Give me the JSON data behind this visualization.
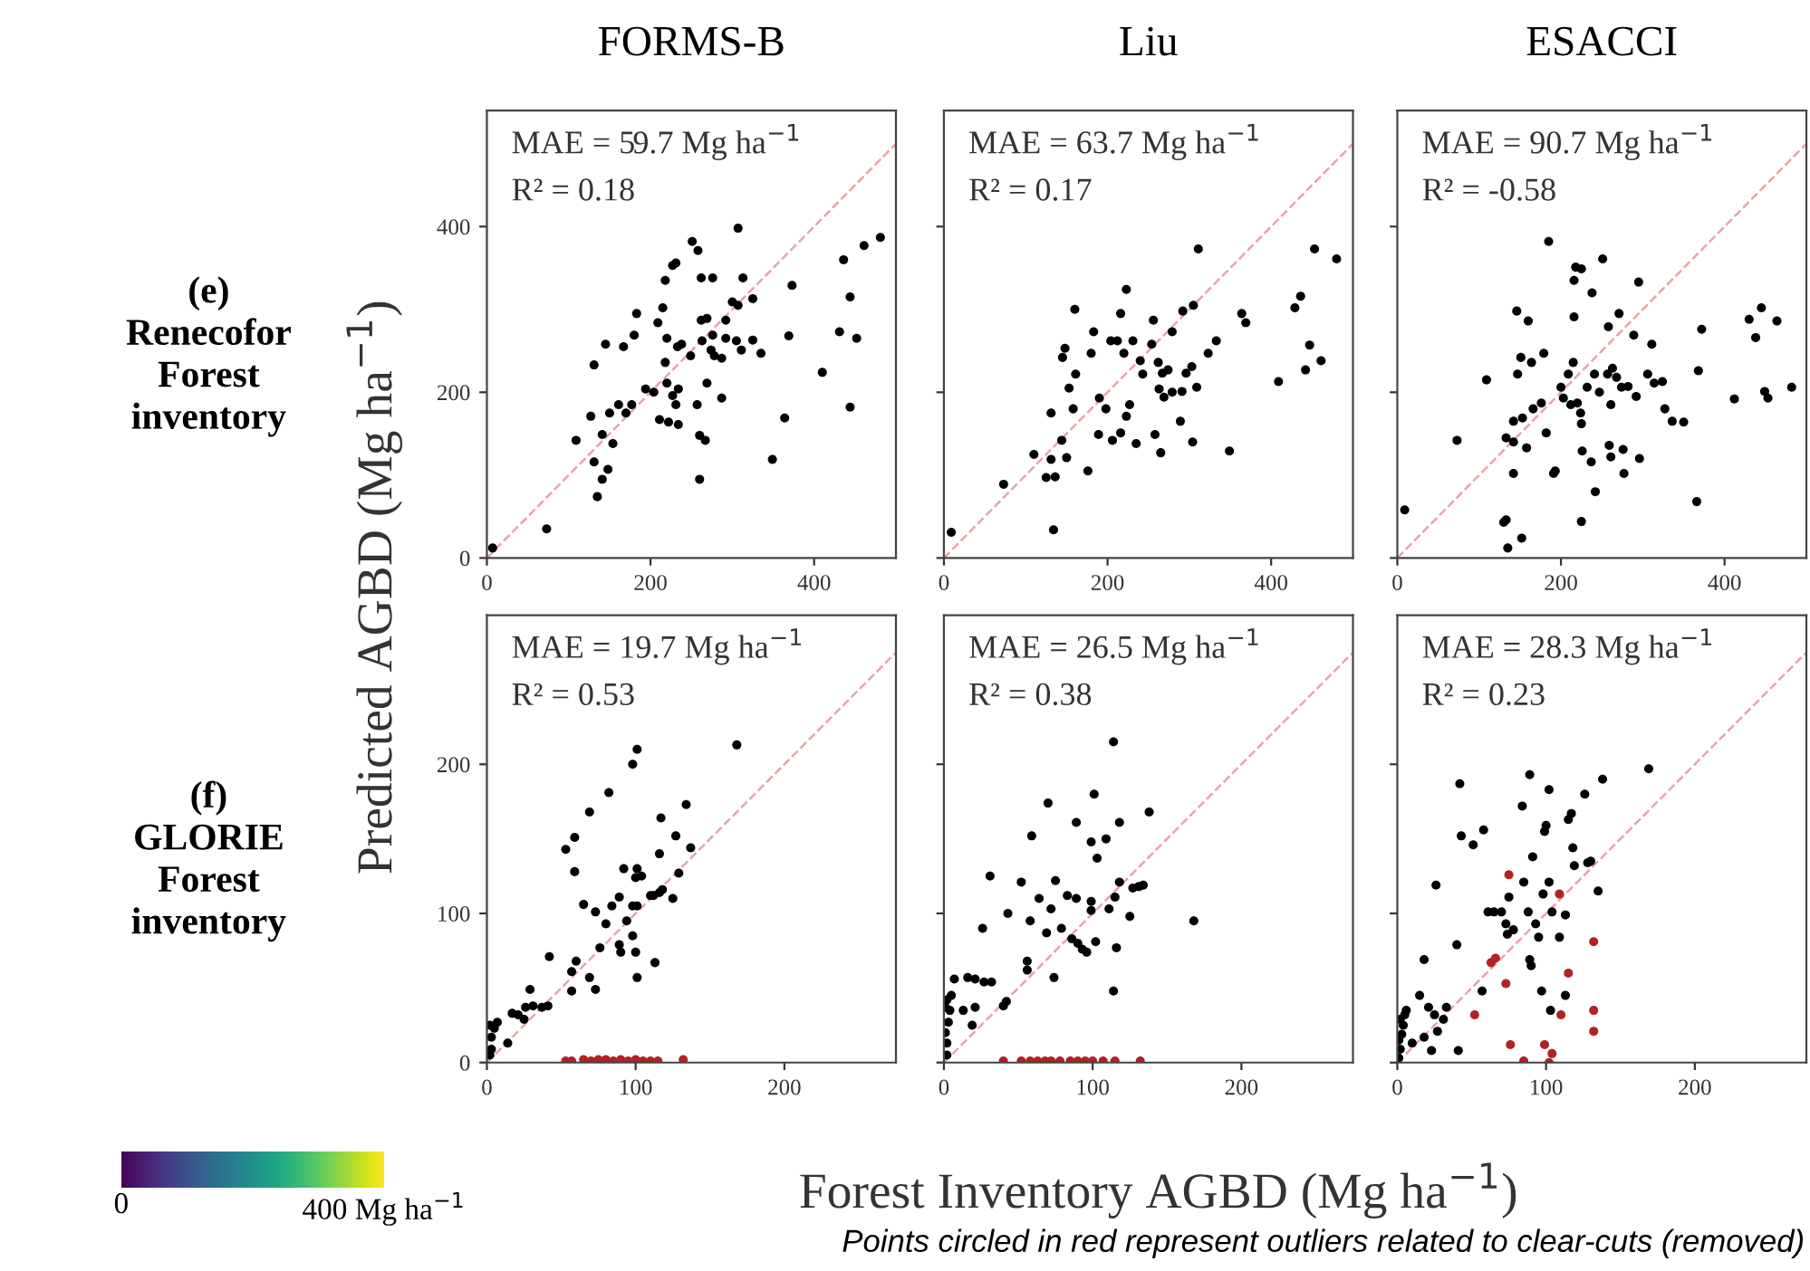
{
  "chart_data": [
    {
      "type": "scatter",
      "title": "FORMS-B",
      "ylabel": "Predicted AGBD (Mg ha$^{−1}$)",
      "annotations": [
        "MAE = 59.7 Mg ha$^{−1}$",
        "R² = 0.18",
        "(e)\nRenecofor\nForest\ninventory"
      ],
      "xlim": [
        0,
        500
      ],
      "ylim": [
        0,
        540
      ],
      "xticks": [
        0,
        200,
        400
      ],
      "yticks": [
        0,
        200,
        400
      ],
      "grid": false,
      "marker": "circle",
      "series": [
        {
          "type": "line",
          "marker": "none",
          "color": "#e9a3a8",
          "line_style": "dashed",
          "x": [
            0,
            500
          ],
          "values": [
            0,
            500
          ]
        },
        {
          "color": "#000000",
          "x": [
            7,
            73,
            135,
            131,
            141,
            148,
            109,
            127,
            131,
            145,
            141,
            150,
            154,
            161,
            170,
            177,
            167,
            180,
            183,
            194,
            204,
            209,
            215,
            218,
            227,
            231,
            251,
            258,
            262,
            276,
            307,
            313,
            325,
            300,
            307,
            262,
            269,
            292,
            220,
            238,
            218,
            233,
            249,
            263,
            276,
            274,
            287,
            278,
            292,
            305,
            311,
            325,
            335,
            220,
            227,
            234,
            231,
            211,
            222,
            234,
            257,
            269,
            287,
            260,
            267,
            260,
            349,
            364,
            369,
            373,
            410,
            431,
            436,
            444,
            452,
            444,
            461,
            481
          ],
          "values": [
            12,
            35,
            74,
            116,
            95,
            107,
            142,
            171,
            233,
            258,
            149,
            175,
            138,
            185,
            175,
            185,
            255,
            269,
            295,
            204,
            200,
            284,
            302,
            335,
            353,
            356,
            382,
            371,
            338,
            338,
            398,
            338,
            313,
            309,
            305,
            287,
            289,
            287,
            265,
            258,
            236,
            255,
            244,
            262,
            269,
            251,
            241,
            244,
            265,
            262,
            251,
            263,
            247,
            211,
            196,
            204,
            185,
            167,
            164,
            161,
            185,
            211,
            193,
            148,
            142,
            95,
            119,
            169,
            268,
            329,
            224,
            273,
            360,
            315,
            265,
            182,
            377,
            387
          ]
        }
      ]
    },
    {
      "type": "scatter",
      "title": "Liu",
      "annotations": [
        "MAE = 63.7 Mg ha$^{−1}$",
        "R² = 0.17"
      ],
      "xlim": [
        0,
        500
      ],
      "ylim": [
        0,
        540
      ],
      "xticks": [
        0,
        200,
        400
      ],
      "yticks": [
        0,
        200,
        400
      ],
      "tick_labels": "x",
      "grid": false,
      "marker": "circle",
      "series": [
        {
          "type": "line",
          "marker": "none",
          "color": "#e9a3a8",
          "line_style": "dashed",
          "x": [
            0,
            500
          ],
          "values": [
            0,
            500
          ]
        },
        {
          "color": "#000000",
          "x": [
            9,
            134,
            73,
            125,
            136,
            110,
            131,
            150,
            176,
            131,
            144,
            158,
            153,
            161,
            145,
            148,
            160,
            180,
            183,
            190,
            198,
            189,
            206,
            216,
            223,
            227,
            235,
            223,
            216,
            204,
            212,
            220,
            231,
            240,
            243,
            254,
            256,
            262,
            267,
            274,
            269,
            279,
            291,
            263,
            279,
            292,
            305,
            296,
            303,
            309,
            289,
            304,
            258,
            265,
            311,
            323,
            333,
            349,
            364,
            369,
            409,
            429,
            436,
            447,
            442,
            461,
            453,
            480
          ],
          "values": [
            31,
            34,
            89,
            97,
            98,
            125,
            119,
            121,
            105,
            175,
            142,
            180,
            205,
            222,
            242,
            253,
            300,
            247,
            273,
            193,
            180,
            149,
            142,
            151,
            171,
            185,
            138,
            324,
            295,
            262,
            262,
            247,
            262,
            238,
            222,
            258,
            287,
            236,
            223,
            227,
            194,
            200,
            201,
            204,
            273,
            298,
            305,
            223,
            231,
            206,
            165,
            140,
            149,
            127,
            373,
            247,
            262,
            129,
            295,
            284,
            213,
            302,
            316,
            257,
            227,
            238,
            373,
            361
          ]
        }
      ]
    },
    {
      "type": "scatter",
      "title": "ESACCI",
      "annotations": [
        "MAE = 90.7 Mg ha$^{−1}$",
        "R² = -0.58"
      ],
      "xlim": [
        0,
        500
      ],
      "ylim": [
        0,
        540
      ],
      "xticks": [
        0,
        200,
        400
      ],
      "yticks": [
        0,
        200,
        400
      ],
      "tick_labels": "x",
      "grid": false,
      "marker": "circle",
      "series": [
        {
          "type": "line",
          "marker": "none",
          "color": "#e9a3a8",
          "line_style": "dashed",
          "x": [
            0,
            500
          ],
          "values": [
            0,
            500
          ]
        },
        {
          "color": "#000000",
          "x": [
            9,
            73,
            135,
            130,
            133,
            152,
            142,
            133,
            142,
            158,
            142,
            153,
            166,
            176,
            182,
            193,
            191,
            109,
            147,
            151,
            164,
            179,
            146,
            160,
            185,
            200,
            209,
            215,
            216,
            216,
            218,
            225,
            238,
            251,
            295,
            258,
            271,
            289,
            311,
            372,
            203,
            212,
            224,
            220,
            225,
            232,
            241,
            247,
            257,
            263,
            268,
            274,
            282,
            292,
            261,
            306,
            314,
            324,
            327,
            336,
            350,
            368,
            226,
            237,
            259,
            261,
            276,
            296,
            277,
            242,
            225,
            366,
            412,
            449,
            453,
            482,
            430,
            445,
            464,
            438
          ],
          "values": [
            58,
            142,
            12,
            43,
            46,
            24,
            102,
            145,
            165,
            133,
            140,
            169,
            180,
            187,
            151,
            105,
            102,
            215,
            222,
            242,
            236,
            247,
            298,
            286,
            382,
            206,
            222,
            236,
            291,
            335,
            351,
            349,
            320,
            361,
            333,
            279,
            295,
            269,
            258,
            276,
            193,
            185,
            175,
            187,
            162,
            206,
            222,
            200,
            222,
            229,
            218,
            206,
            207,
            195,
            185,
            222,
            211,
            213,
            180,
            165,
            164,
            226,
            129,
            116,
            136,
            122,
            131,
            120,
            102,
            80,
            44,
            68,
            192,
            201,
            193,
            206,
            288,
            302,
            286,
            266
          ]
        }
      ]
    },
    {
      "type": "scatter",
      "annotations": [
        "MAE = 19.7 Mg ha$^{−1}$",
        "R² = 0.53",
        "(f)\nGLORIE\nForest\ninventory"
      ],
      "clim": [
        0,
        400
      ],
      "cticks": [
        {
          "value": 0,
          "label": "0"
        },
        {
          "value": 400,
          "label": "400 Mg ha$^{−1}$"
        }
      ],
      "xlim": [
        0,
        275
      ],
      "ylim": [
        0,
        300
      ],
      "xticks": [
        0,
        100,
        200
      ],
      "yticks": [
        0,
        100,
        200
      ],
      "grid": false,
      "marker": "circle",
      "series": [
        {
          "type": "line",
          "marker": "none",
          "color": "#e9a3a8",
          "line_style": "dashed",
          "x": [
            0,
            275
          ],
          "values": [
            0,
            275
          ]
        },
        {
          "color": "#000000",
          "x": [
            3,
            2,
            5,
            7,
            3,
            2,
            14,
            17,
            21,
            25,
            26,
            29,
            31,
            37,
            41,
            42,
            57,
            57,
            60,
            69,
            73,
            65,
            73,
            76,
            80,
            84,
            89,
            89,
            90,
            94,
            98,
            98,
            101,
            100,
            101,
            113,
            92,
            101,
            100,
            104,
            110,
            112,
            116,
            118,
            125,
            129,
            116,
            127,
            117,
            137,
            134,
            53,
            59,
            59,
            69,
            82,
            98,
            101,
            168
          ],
          "values": [
            17,
            25,
            23,
            27,
            9,
            5,
            13,
            33,
            32,
            29,
            37,
            49,
            38,
            37,
            38,
            71,
            48,
            61,
            68,
            57,
            49,
            106,
            101,
            77,
            93,
            105,
            111,
            79,
            74,
            95,
            85,
            105,
            105,
            74,
            57,
            67,
            130,
            130,
            124,
            125,
            112,
            112,
            114,
            116,
            110,
            127,
            140,
            152,
            164,
            144,
            173,
            143,
            151,
            128,
            168,
            181,
            200,
            210,
            213
          ]
        },
        {
          "color": "#b22222",
          "x": [
            53,
            57,
            65,
            70,
            75,
            80,
            85,
            90,
            95,
            100,
            105,
            110,
            115,
            132
          ],
          "values": [
            1,
            1,
            2,
            1,
            2,
            2,
            1,
            2,
            1,
            2,
            1,
            1,
            1,
            2
          ]
        }
      ]
    },
    {
      "type": "scatter",
      "xlabel": "Forest Inventory AGBD (Mg ha$^{−1}$)",
      "annotations": [
        "MAE = 26.5 Mg ha$^{−1}$",
        "R² = 0.38"
      ],
      "xlim": [
        0,
        275
      ],
      "ylim": [
        0,
        300
      ],
      "xticks": [
        0,
        100,
        200
      ],
      "yticks": [
        0,
        100,
        200
      ],
      "tick_labels": "x",
      "grid": false,
      "marker": "circle",
      "series": [
        {
          "type": "line",
          "marker": "none",
          "color": "#e9a3a8",
          "line_style": "dashed",
          "x": [
            0,
            275
          ],
          "values": [
            0,
            275
          ]
        },
        {
          "color": "#000000",
          "x": [
            2,
            2,
            1,
            3,
            1,
            2,
            4,
            5,
            7,
            13,
            19,
            21,
            16,
            21,
            27,
            32,
            42,
            40,
            26,
            31,
            43,
            52,
            56,
            56,
            58,
            59,
            64,
            69,
            70,
            72,
            74,
            75,
            79,
            83,
            86,
            89,
            89,
            90,
            93,
            96,
            99,
            99,
            101,
            103,
            99,
            102,
            109,
            111,
            114,
            115,
            116,
            118,
            118,
            125,
            127,
            131,
            134,
            138,
            168,
            114
          ],
          "values": [
            5,
            13,
            20,
            27,
            37,
            42,
            35,
            45,
            56,
            35,
            25,
            37,
            57,
            56,
            54,
            54,
            41,
            38,
            90,
            125,
            100,
            121,
            68,
            62,
            95,
            152,
            110,
            87,
            174,
            103,
            57,
            122,
            90,
            112,
            83,
            161,
            110,
            80,
            76,
            74,
            108,
            148,
            180,
            137,
            102,
            81,
            150,
            103,
            48,
            111,
            77,
            161,
            121,
            98,
            117,
            118,
            119,
            168,
            95,
            215
          ]
        },
        {
          "color": "#b22222",
          "x": [
            40,
            52,
            58,
            63,
            68,
            72,
            78,
            85,
            90,
            95,
            100,
            107,
            115,
            132
          ],
          "values": [
            1,
            1,
            1,
            1,
            1,
            1,
            1,
            1,
            1,
            1,
            1,
            1,
            1,
            1
          ]
        }
      ]
    },
    {
      "type": "scatter",
      "annotations": [
        "MAE = 28.3 Mg ha$^{−1}$",
        "R² = 0.23",
        "Points circled in red represent outliers related to clear-cuts (removed)"
      ],
      "xlim": [
        0,
        275
      ],
      "ylim": [
        0,
        300
      ],
      "xticks": [
        0,
        100,
        200
      ],
      "yticks": [
        0,
        100,
        200
      ],
      "tick_labels": "x",
      "grid": false,
      "marker": "circle",
      "series": [
        {
          "type": "line",
          "marker": "none",
          "color": "#e9a3a8",
          "line_style": "dashed",
          "x": [
            0,
            275
          ],
          "values": [
            0,
            275
          ]
        },
        {
          "color": "#000000",
          "x": [
            1,
            2,
            1,
            3,
            4,
            2,
            5,
            6,
            10,
            15,
            18,
            21,
            23,
            25,
            27,
            31,
            33,
            18,
            26,
            40,
            41,
            42,
            43,
            51,
            58,
            57,
            61,
            65,
            70,
            75,
            73,
            74,
            78,
            85,
            84,
            89,
            88,
            90,
            89,
            91,
            93,
            95,
            97,
            98,
            99,
            100,
            102,
            102,
            104,
            109,
            103,
            113,
            113,
            115,
            117,
            118,
            119,
            126,
            128,
            130,
            135,
            138,
            169
          ],
          "values": [
            3,
            9,
            15,
            19,
            25,
            29,
            32,
            35,
            13,
            45,
            17,
            37,
            8,
            32,
            21,
            29,
            37,
            69,
            119,
            79,
            8,
            187,
            152,
            146,
            156,
            48,
            101,
            101,
            101,
            111,
            93,
            86,
            89,
            121,
            172,
            193,
            101,
            65,
            69,
            138,
            93,
            84,
            48,
            113,
            155,
            159,
            183,
            121,
            101,
            84,
            35,
            45,
            99,
            163,
            167,
            144,
            132,
            180,
            134,
            135,
            115,
            190,
            197
          ]
        },
        {
          "color": "#b22222",
          "x": [
            75,
            109,
            132,
            63,
            66,
            73,
            115,
            52,
            110,
            132,
            132,
            76,
            99,
            104,
            85,
            102
          ],
          "values": [
            126,
            113,
            81,
            67,
            70,
            53,
            60,
            32,
            32,
            35,
            21,
            12,
            12,
            6,
            1,
            0
          ]
        }
      ]
    }
  ]
}
